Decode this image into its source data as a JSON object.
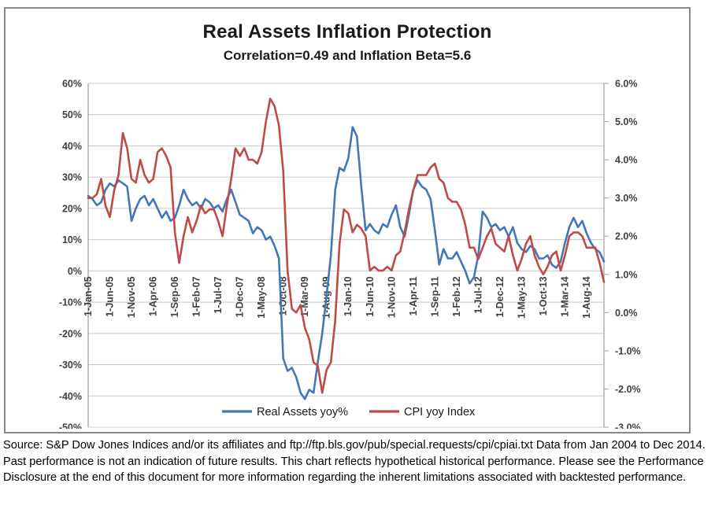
{
  "chart": {
    "title": "Real Assets Inflation Protection",
    "subtitle": "Correlation=0.49 and Inflation Beta=5.6",
    "source_note": "Source: S&P Dow Jones Indices and/or its affiliates and ftp://ftp.bls.gov/pub/special.requests/cpi/cpiai.txt  Data from Jan 2004 to Dec 2014. Past performance is not an indication of future results. This chart reflects hypothetical historical performance. Please see the Performance Disclosure at the end of this document for more information regarding the inherent limitations associated with backtested performance."
  },
  "chart_data": {
    "type": "line",
    "title": "Real Assets Inflation Protection",
    "subtitle": "Correlation=0.49 and Inflation Beta=5.6",
    "x_start": "Jan-2005",
    "x_end": "Dec-2014",
    "x_frequency": "monthly",
    "x_tick_labels": [
      "1-Jan-05",
      "1-Jun-05",
      "1-Nov-05",
      "1-Apr-06",
      "1-Sep-06",
      "1-Feb-07",
      "1-Jul-07",
      "1-Dec-07",
      "1-May-08",
      "1-Oct-08",
      "1-Mar-09",
      "1-Aug-09",
      "1-Jan-10",
      "1-Jun-10",
      "1-Nov-10",
      "1-Apr-11",
      "1-Sep-11",
      "1-Feb-12",
      "1-Jul-12",
      "1-Dec-12",
      "1-May-13",
      "1-Oct-13",
      "1-Mar-14",
      "1-Aug-14"
    ],
    "x_tick_step_months": 5,
    "left_axis": {
      "min": -50,
      "max": 60,
      "tick_labels": [
        "60%",
        "50%",
        "40%",
        "30%",
        "20%",
        "10%",
        "0%",
        "-10%",
        "-20%",
        "-30%",
        "-40%",
        "-50%"
      ],
      "tick_values": [
        60,
        50,
        40,
        30,
        20,
        10,
        0,
        -10,
        -20,
        -30,
        -40,
        -50
      ]
    },
    "right_axis": {
      "min": -3,
      "max": 6,
      "tick_labels": [
        "6.0%",
        "5.0%",
        "4.0%",
        "3.0%",
        "2.0%",
        "1.0%",
        "0.0%",
        "-1.0%",
        "-2.0%",
        "-3.0%"
      ],
      "tick_values": [
        6,
        5,
        4,
        3,
        2,
        1,
        0,
        -1,
        -2,
        -3
      ]
    },
    "grid": true,
    "legend_position": "bottom",
    "colors": {
      "real_assets": "#4576B5",
      "cpi": "#BE4B48",
      "gridline": "#c9c9c9",
      "axis_line": "#9e9e9e"
    },
    "series": [
      {
        "name": "Real Assets yoy%",
        "axis": "left",
        "color": "#4576B5",
        "values": [
          24,
          23,
          21,
          22,
          26,
          28,
          27,
          29,
          28,
          27,
          16,
          20,
          23,
          24,
          21,
          23,
          20,
          17,
          19,
          16,
          17,
          21,
          26,
          23,
          21,
          22,
          20,
          23,
          22,
          20,
          21,
          19,
          23,
          26,
          22,
          18,
          17,
          16,
          12,
          14,
          13,
          10,
          11,
          8,
          4,
          -28,
          -32,
          -31,
          -34,
          -39,
          -41,
          -38,
          -39,
          -29,
          -20,
          -8,
          5,
          26,
          33,
          32,
          36,
          46,
          43,
          27,
          13,
          15,
          13,
          12,
          15,
          14,
          18,
          21,
          14,
          11,
          18,
          26,
          29,
          27,
          26,
          23,
          13,
          2,
          7,
          4,
          4,
          6,
          3,
          0,
          -4,
          -2,
          5,
          19,
          17,
          14,
          15,
          13,
          14,
          11,
          14,
          9,
          7,
          6,
          8,
          7,
          4,
          4,
          5,
          2,
          1,
          3,
          9,
          14,
          17,
          14,
          16,
          12,
          9,
          7,
          6,
          3
        ]
      },
      {
        "name": "CPI yoy Index",
        "axis": "right",
        "color": "#BE4B48",
        "values": [
          3.0,
          3.0,
          3.1,
          3.5,
          2.8,
          2.5,
          3.2,
          3.6,
          4.7,
          4.3,
          3.5,
          3.4,
          4.0,
          3.6,
          3.4,
          3.5,
          4.2,
          4.3,
          4.1,
          3.8,
          2.1,
          1.3,
          2.0,
          2.5,
          2.1,
          2.4,
          2.8,
          2.6,
          2.7,
          2.7,
          2.4,
          2.0,
          2.8,
          3.5,
          4.3,
          4.1,
          4.3,
          4.0,
          4.0,
          3.9,
          4.2,
          5.0,
          5.6,
          5.4,
          4.9,
          3.7,
          1.1,
          0.1,
          0.0,
          0.2,
          -0.4,
          -0.7,
          -1.3,
          -1.4,
          -2.1,
          -1.5,
          -1.3,
          -0.2,
          1.8,
          2.7,
          2.6,
          2.1,
          2.3,
          2.2,
          2.0,
          1.1,
          1.2,
          1.1,
          1.1,
          1.2,
          1.1,
          1.5,
          1.6,
          2.1,
          2.7,
          3.2,
          3.6,
          3.6,
          3.6,
          3.8,
          3.9,
          3.5,
          3.4,
          3.0,
          2.9,
          2.9,
          2.7,
          2.3,
          1.7,
          1.7,
          1.4,
          1.7,
          2.0,
          2.2,
          1.8,
          1.7,
          1.6,
          2.0,
          1.5,
          1.1,
          1.4,
          1.8,
          2.0,
          1.5,
          1.2,
          1.0,
          1.2,
          1.5,
          1.6,
          1.1,
          1.5,
          2.0,
          2.1,
          2.1,
          2.0,
          1.7,
          1.7,
          1.7,
          1.3,
          0.8
        ]
      }
    ]
  }
}
